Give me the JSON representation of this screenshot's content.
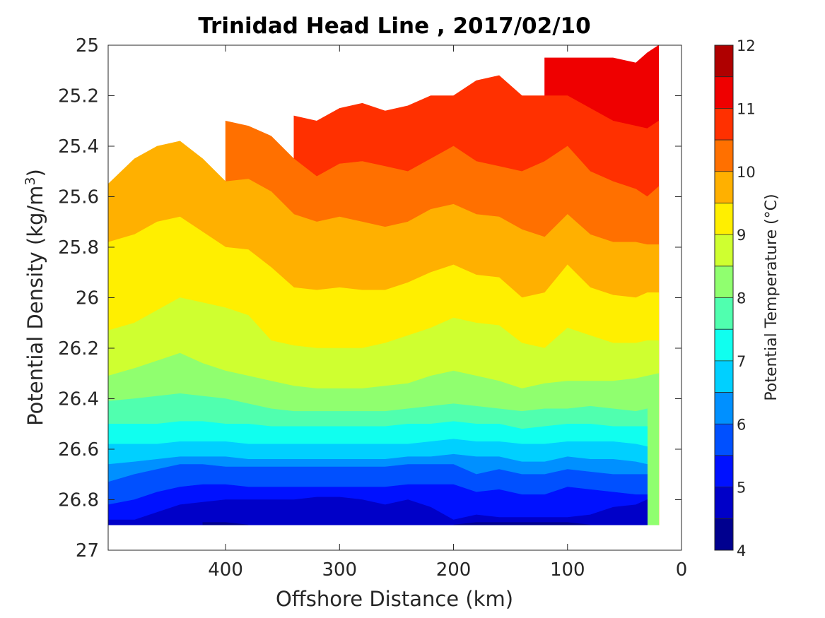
{
  "chart_data": {
    "type": "contour",
    "title": "Trinidad Head Line , 2017/02/10",
    "xlabel": "Offshore Distance (km)",
    "ylabel": "Potential Density (kg/m³)",
    "ylabel_parts": {
      "main": "Potential Density (kg/m",
      "superscript": "3",
      "close": ")"
    },
    "xlim": [
      0,
      503
    ],
    "x_reversed": true,
    "ylim": [
      25,
      27
    ],
    "y_reversed": true,
    "x_ticks": [
      "400",
      "300",
      "200",
      "100",
      "0"
    ],
    "y_ticks": [
      "25",
      "25.2",
      "25.4",
      "25.6",
      "25.8",
      "26",
      "26.2",
      "26.4",
      "26.6",
      "26.8",
      "27"
    ],
    "colorbar": {
      "label": "Potential Temperature (°C)",
      "range": [
        4,
        12
      ],
      "ticks": [
        "4",
        "5",
        "6",
        "7",
        "8",
        "9",
        "10",
        "11",
        "12"
      ],
      "levels": [
        4,
        4.5,
        5,
        5.5,
        6,
        6.5,
        7,
        7.5,
        8,
        8.5,
        9,
        9.5,
        10,
        10.5,
        11,
        11.5,
        12
      ],
      "colors": [
        "#00008f",
        "#0000c8",
        "#0011ff",
        "#0050ff",
        "#0090ff",
        "#00d0ff",
        "#10ffef",
        "#50ffaf",
        "#90ff6f",
        "#cfff30",
        "#ffef00",
        "#ffb000",
        "#ff7000",
        "#ff3000",
        "#ef0000",
        "#af0000"
      ]
    },
    "x_stations": [
      503,
      480,
      460,
      440,
      420,
      400,
      380,
      360,
      340,
      320,
      300,
      280,
      260,
      240,
      220,
      200,
      180,
      160,
      140,
      120,
      100,
      80,
      60,
      40,
      30,
      20
    ],
    "isotherms": [
      {
        "temp": 11.5,
        "sigma": [
          null,
          null,
          null,
          null,
          null,
          null,
          null,
          null,
          null,
          null,
          null,
          null,
          null,
          null,
          null,
          null,
          null,
          null,
          null,
          25.05,
          25.05,
          25.05,
          25.05,
          25.07,
          25.03,
          25.0
        ]
      },
      {
        "temp": 11.0,
        "sigma": [
          null,
          null,
          null,
          null,
          null,
          null,
          null,
          null,
          25.28,
          25.3,
          25.25,
          25.23,
          25.26,
          25.24,
          25.2,
          25.2,
          25.14,
          25.12,
          25.2,
          25.2,
          25.2,
          25.25,
          25.3,
          25.32,
          25.33,
          25.3
        ]
      },
      {
        "temp": 10.5,
        "sigma": [
          null,
          null,
          null,
          null,
          null,
          25.3,
          25.32,
          25.36,
          25.45,
          25.52,
          25.47,
          25.46,
          25.48,
          25.5,
          25.45,
          25.4,
          25.46,
          25.48,
          25.5,
          25.46,
          25.4,
          25.5,
          25.54,
          25.57,
          25.6,
          25.56
        ]
      },
      {
        "temp": 10.0,
        "sigma": [
          25.55,
          25.45,
          25.4,
          25.38,
          25.45,
          25.54,
          25.53,
          25.58,
          25.67,
          25.7,
          25.68,
          25.7,
          25.72,
          25.7,
          25.65,
          25.63,
          25.67,
          25.68,
          25.73,
          25.76,
          25.67,
          25.75,
          25.78,
          25.78,
          25.79,
          25.79
        ]
      },
      {
        "temp": 9.5,
        "sigma": [
          25.78,
          25.75,
          25.7,
          25.68,
          25.74,
          25.8,
          25.81,
          25.88,
          25.96,
          25.97,
          25.96,
          25.97,
          25.97,
          25.94,
          25.9,
          25.87,
          25.91,
          25.92,
          26.0,
          25.98,
          25.87,
          25.96,
          25.99,
          26.0,
          25.98,
          25.98
        ]
      },
      {
        "temp": 9.0,
        "sigma": [
          26.13,
          26.1,
          26.05,
          26.0,
          26.02,
          26.04,
          26.07,
          26.17,
          26.19,
          26.2,
          26.2,
          26.2,
          26.18,
          26.15,
          26.12,
          26.08,
          26.1,
          26.11,
          26.18,
          26.2,
          26.12,
          26.15,
          26.18,
          26.18,
          26.17,
          26.17
        ]
      },
      {
        "temp": 8.5,
        "sigma": [
          26.31,
          26.28,
          26.25,
          26.22,
          26.26,
          26.29,
          26.31,
          26.33,
          26.35,
          26.36,
          26.36,
          26.36,
          26.35,
          26.34,
          26.31,
          26.29,
          26.31,
          26.33,
          26.36,
          26.34,
          26.33,
          26.33,
          26.33,
          26.32,
          26.31,
          26.3
        ]
      },
      {
        "temp": 8.0,
        "sigma": [
          26.41,
          26.4,
          26.39,
          26.38,
          26.39,
          26.4,
          26.42,
          26.44,
          26.45,
          26.45,
          26.45,
          26.45,
          26.45,
          26.44,
          26.43,
          26.42,
          26.43,
          26.44,
          26.45,
          26.44,
          26.44,
          26.43,
          26.44,
          26.45,
          26.44,
          null
        ]
      },
      {
        "temp": 7.5,
        "sigma": [
          26.5,
          26.5,
          26.5,
          26.49,
          26.49,
          26.5,
          26.5,
          26.51,
          26.51,
          26.51,
          26.51,
          26.51,
          26.51,
          26.5,
          26.5,
          26.49,
          26.5,
          26.5,
          26.52,
          26.51,
          26.5,
          26.5,
          26.51,
          26.51,
          26.51,
          null
        ]
      },
      {
        "temp": 7.0,
        "sigma": [
          26.58,
          26.58,
          26.58,
          26.57,
          26.57,
          26.57,
          26.58,
          26.58,
          26.58,
          26.58,
          26.58,
          26.58,
          26.58,
          26.58,
          26.57,
          26.56,
          26.57,
          26.57,
          26.58,
          26.58,
          26.57,
          26.57,
          26.57,
          26.58,
          26.59,
          null
        ]
      },
      {
        "temp": 6.5,
        "sigma": [
          26.66,
          26.65,
          26.64,
          26.63,
          26.63,
          26.63,
          26.64,
          26.64,
          26.64,
          26.64,
          26.64,
          26.64,
          26.64,
          26.63,
          26.63,
          26.62,
          26.63,
          26.63,
          26.65,
          26.65,
          26.63,
          26.64,
          26.64,
          26.65,
          26.66,
          null
        ]
      },
      {
        "temp": 6.0,
        "sigma": [
          26.73,
          26.7,
          26.68,
          26.66,
          26.66,
          26.67,
          26.67,
          26.67,
          26.67,
          26.67,
          26.67,
          26.67,
          26.67,
          26.66,
          26.66,
          26.66,
          26.7,
          26.68,
          26.7,
          26.7,
          26.68,
          26.69,
          26.7,
          26.7,
          26.7,
          null
        ]
      },
      {
        "temp": 5.5,
        "sigma": [
          26.82,
          26.8,
          26.77,
          26.75,
          26.74,
          26.74,
          26.75,
          26.75,
          26.75,
          26.75,
          26.75,
          26.75,
          26.75,
          26.74,
          26.74,
          26.74,
          26.77,
          26.76,
          26.78,
          26.78,
          26.75,
          26.76,
          26.77,
          26.78,
          26.78,
          null
        ]
      },
      {
        "temp": 5.0,
        "sigma": [
          26.88,
          26.88,
          26.85,
          26.82,
          26.81,
          26.8,
          26.8,
          26.8,
          26.8,
          26.79,
          26.79,
          26.8,
          26.82,
          26.8,
          26.83,
          26.88,
          26.86,
          26.87,
          26.87,
          26.87,
          26.87,
          26.86,
          26.83,
          26.82,
          26.8,
          null
        ]
      },
      {
        "temp": 4.5,
        "sigma": [
          null,
          null,
          null,
          null,
          26.89,
          26.89,
          26.9,
          null,
          null,
          null,
          null,
          null,
          null,
          null,
          null,
          26.9,
          26.89,
          26.89,
          26.89,
          26.89,
          26.89,
          26.9,
          null,
          null,
          null,
          null
        ]
      }
    ]
  }
}
